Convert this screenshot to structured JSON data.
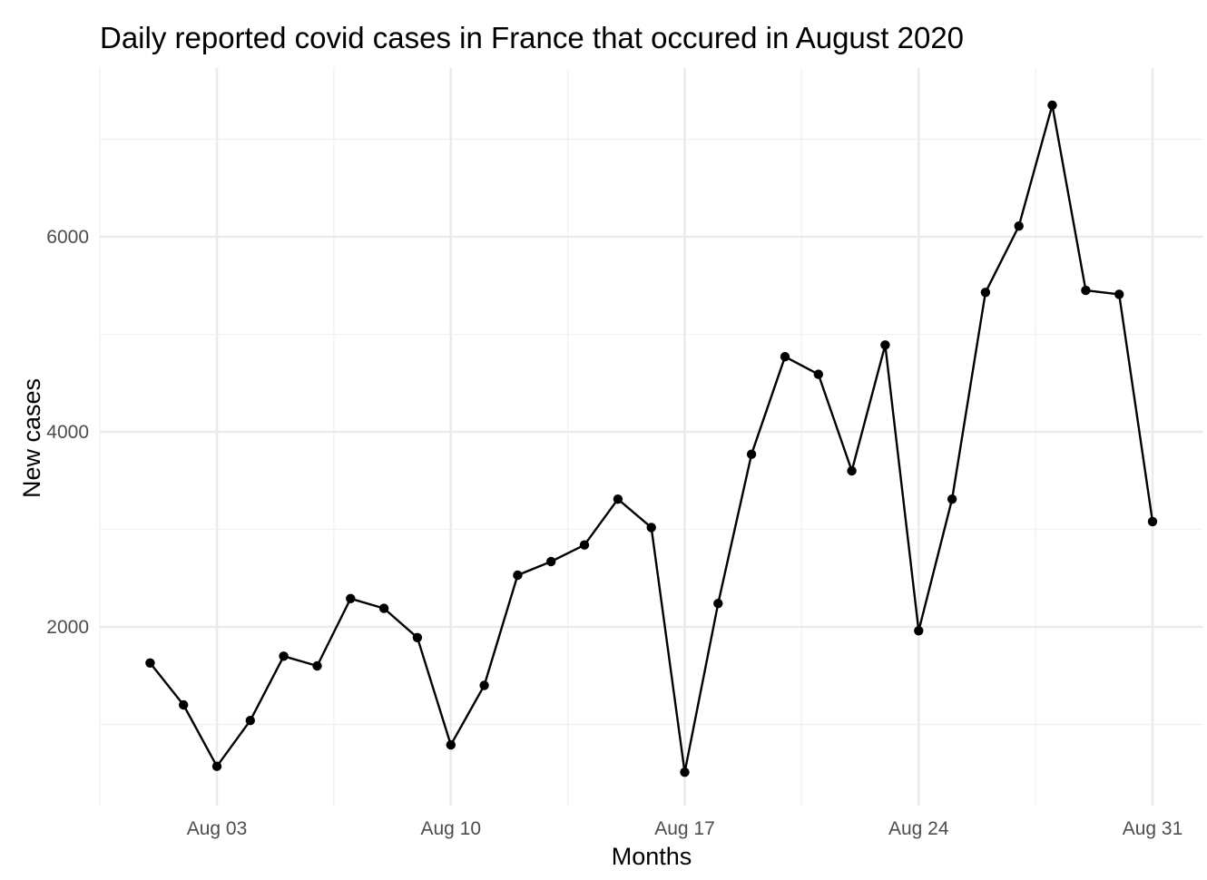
{
  "chart_data": {
    "type": "line",
    "title": "Daily reported covid cases in France that occured in August 2020",
    "xlabel": "Months",
    "ylabel": "New cases",
    "x_tick_labels": [
      "Aug 03",
      "Aug 10",
      "Aug 17",
      "Aug 24",
      "Aug 31"
    ],
    "x_ticks": [
      "2020-08-03",
      "2020-08-10",
      "2020-08-17",
      "2020-08-24",
      "2020-08-31"
    ],
    "y_ticks": [
      2000,
      4000,
      6000
    ],
    "y_tick_labels": [
      "2000",
      "4000",
      "6000"
    ],
    "xlim": [
      "2020-07-29",
      "2020-09-01"
    ],
    "ylim": [
      0,
      7400
    ],
    "grid": true,
    "legend": "none",
    "series": [
      {
        "x": [
          "2020-08-01",
          "2020-08-02",
          "2020-08-03",
          "2020-08-04",
          "2020-08-05",
          "2020-08-06",
          "2020-08-07",
          "2020-08-08",
          "2020-08-09",
          "2020-08-10",
          "2020-08-11",
          "2020-08-12",
          "2020-08-13",
          "2020-08-14",
          "2020-08-15",
          "2020-08-16",
          "2020-08-17",
          "2020-08-18",
          "2020-08-19",
          "2020-08-20",
          "2020-08-21",
          "2020-08-22",
          "2020-08-23",
          "2020-08-24",
          "2020-08-25",
          "2020-08-26",
          "2020-08-27",
          "2020-08-28",
          "2020-08-29",
          "2020-08-30",
          "2020-08-31"
        ],
        "values": [
          1630,
          1200,
          570,
          1040,
          1700,
          1600,
          2290,
          2190,
          1890,
          790,
          1400,
          2530,
          2670,
          2840,
          3310,
          3020,
          510,
          2240,
          3770,
          4770,
          4590,
          3600,
          4890,
          1960,
          3310,
          5430,
          6110,
          7350,
          5450,
          5410,
          3080
        ]
      }
    ]
  }
}
